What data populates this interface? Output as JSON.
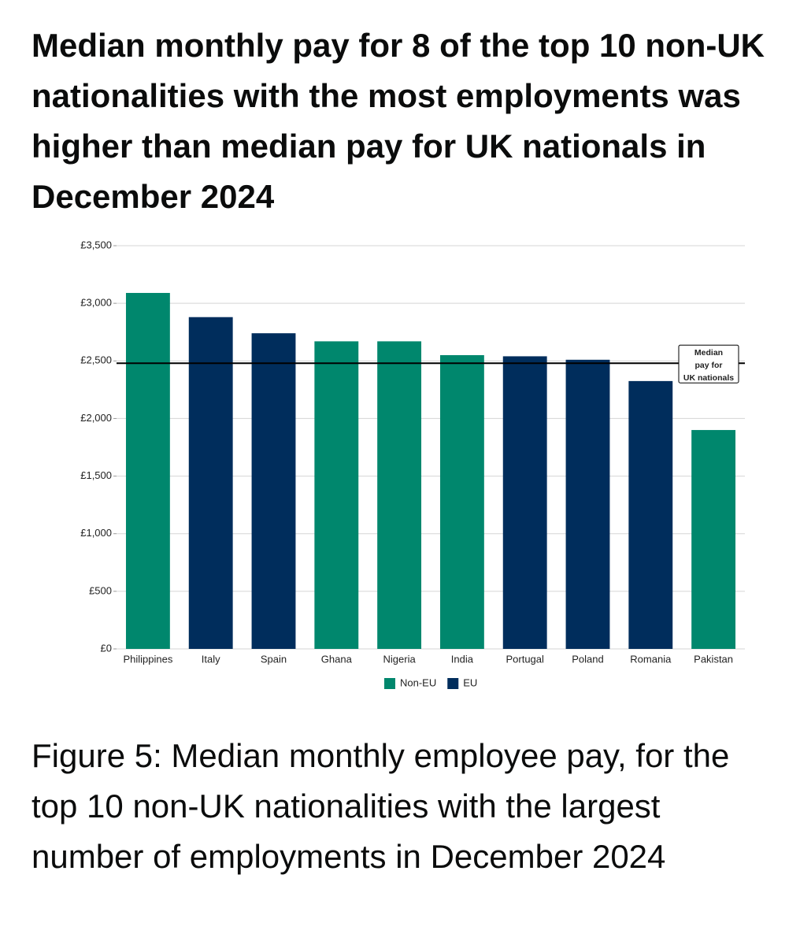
{
  "chart_data": {
    "type": "bar",
    "title": "Median monthly pay for 8 of the top 10 non-UK nationalities with the most employments was higher than median pay for UK nationals in December 2024",
    "caption": "Figure 5: Median monthly employee pay, for the top 10 non-UK nationalities with the largest number of employments in December 2024",
    "categories": [
      "Philippines",
      "Italy",
      "Spain",
      "Ghana",
      "Nigeria",
      "India",
      "Portugal",
      "Poland",
      "Romania",
      "Pakistan"
    ],
    "series": [
      {
        "name": "Non-EU",
        "color": "#00876d",
        "values": [
          3090,
          null,
          null,
          2670,
          2670,
          2550,
          null,
          null,
          null,
          1900
        ]
      },
      {
        "name": "EU",
        "color": "#002d5c",
        "values": [
          null,
          2880,
          2740,
          null,
          null,
          null,
          2540,
          2510,
          2325,
          null
        ]
      }
    ],
    "ylim": [
      0,
      3500
    ],
    "yticks": [
      {
        "value": 0,
        "label": "£0"
      },
      {
        "value": 500,
        "label": "£500"
      },
      {
        "value": 1000,
        "label": "£1,000"
      },
      {
        "value": 1500,
        "label": "£1,500"
      },
      {
        "value": 2000,
        "label": "£2,000"
      },
      {
        "value": 2500,
        "label": "£2,500"
      },
      {
        "value": 3000,
        "label": "£3,000"
      },
      {
        "value": 3500,
        "label": "£3,500"
      }
    ],
    "grid": true,
    "reference_line": {
      "value": 2480,
      "label": [
        "Median",
        "pay for",
        "UK nationals"
      ]
    }
  }
}
